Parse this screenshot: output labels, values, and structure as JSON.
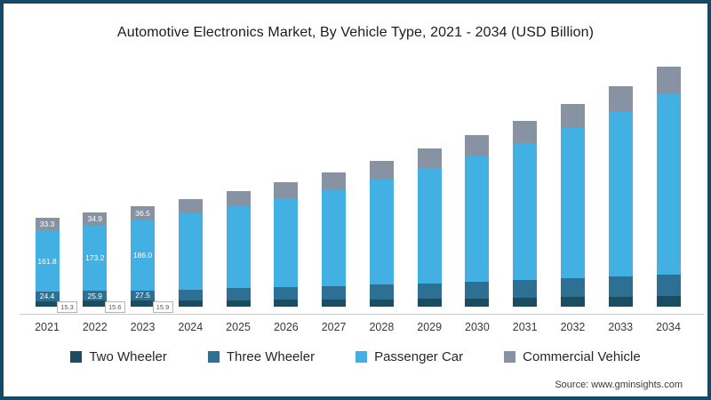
{
  "title": "Automotive Electronics Market, By Vehicle Type, 2021 - 2034 (USD Billion)",
  "source": "Source: www.gminsights.com",
  "frame_color": "#144a66",
  "colors": {
    "two_wheeler": "#1a4d5f",
    "three_wheeler": "#2e7093",
    "passenger_car": "#42b0e3",
    "commercial_vehicle": "#8793a3",
    "axis_line": "#cccccc",
    "callout_border": "#b5b5b5",
    "callout_text": "#555555"
  },
  "chart_data": {
    "type": "bar",
    "stacked": true,
    "title": "Automotive Electronics Market, By Vehicle Type, 2021 - 2034 (USD Billion)",
    "unit": "USD Billion",
    "categories": [
      "2021",
      "2022",
      "2023",
      "2024",
      "2025",
      "2026",
      "2027",
      "2028",
      "2029",
      "2030",
      "2031",
      "2032",
      "2033",
      "2034"
    ],
    "series": [
      {
        "name": "Two Wheeler",
        "color": "#1a4d5f",
        "values": [
          15.3,
          15.6,
          15.9,
          16.5,
          17.2,
          18.0,
          18.9,
          19.9,
          21.0,
          22.2,
          23.5,
          24.9,
          26.4,
          28.0
        ],
        "shown_labels": [
          "15.3",
          "15.6",
          "15.9"
        ],
        "label_style": "callout"
      },
      {
        "name": "Three Wheeler",
        "color": "#2e7093",
        "values": [
          24.4,
          25.9,
          27.5,
          29.3,
          31.2,
          33.3,
          35.5,
          37.9,
          40.5,
          43.3,
          46.3,
          49.5,
          53.0,
          56.7
        ],
        "shown_labels": [
          "24.4",
          "25.9",
          "27.5"
        ],
        "label_style": "inside"
      },
      {
        "name": "Passenger Car",
        "color": "#42b0e3",
        "values": [
          161.8,
          173.2,
          186.0,
          200.5,
          217.0,
          235.5,
          256.0,
          279.0,
          304.5,
          332.5,
          363.5,
          398.0,
          436.0,
          478.0
        ],
        "shown_labels": [
          "161.8",
          "173.2",
          "186.0"
        ],
        "label_style": "inside"
      },
      {
        "name": "Commercial Vehicle",
        "color": "#8793a3",
        "values": [
          33.3,
          34.9,
          36.5,
          38.6,
          40.9,
          43.4,
          46.1,
          49.0,
          52.2,
          55.6,
          59.3,
          63.3,
          67.6,
          72.3
        ],
        "shown_labels": [
          "33.3",
          "34.9",
          "36.5"
        ],
        "label_style": "inside"
      }
    ],
    "ylim": [
      0,
      660
    ],
    "grid": false,
    "legend_position": "bottom",
    "value_axis_visible": false
  }
}
